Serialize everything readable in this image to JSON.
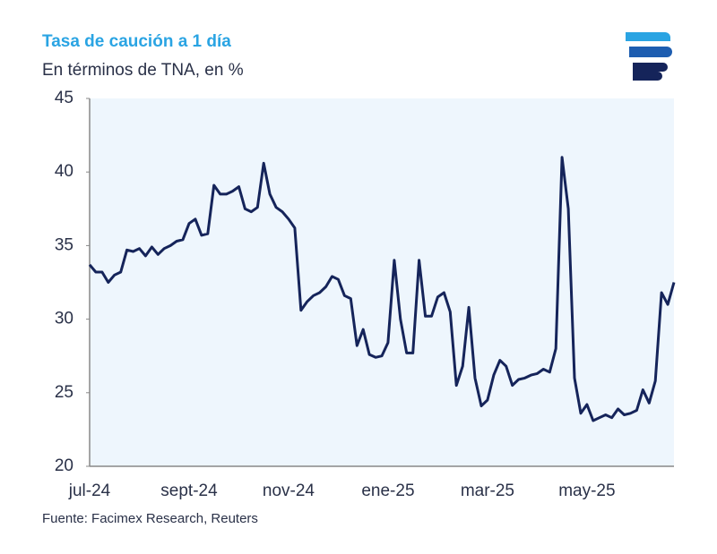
{
  "chart_data": {
    "type": "line",
    "title": "Tasa de caución a 1 día",
    "subtitle": "En términos de TNA, en %",
    "source": "Fuente: Facimex Research, Reuters",
    "categories": [
      "jul-24",
      null,
      null,
      null,
      null,
      null,
      null,
      null,
      null,
      null,
      null,
      null,
      null,
      null,
      null,
      null,
      "sept-24",
      null,
      null,
      null,
      null,
      null,
      null,
      null,
      null,
      null,
      null,
      null,
      null,
      null,
      null,
      null,
      "nov-24",
      null,
      null,
      null,
      null,
      null,
      null,
      null,
      null,
      null,
      null,
      null,
      null,
      null,
      null,
      null,
      "ene-25",
      null,
      null,
      null,
      null,
      null,
      null,
      null,
      null,
      null,
      null,
      null,
      null,
      null,
      null,
      null,
      "mar-25",
      null,
      null,
      null,
      null,
      null,
      null,
      null,
      null,
      null,
      null,
      null,
      null,
      null,
      null,
      null,
      "may-25",
      null,
      null,
      null,
      null,
      null,
      null,
      null,
      null,
      null,
      null,
      null,
      null,
      null,
      null
    ],
    "series": [
      {
        "name": "Tasa de caución a 1 día",
        "color": "#15245a",
        "values": [
          33.7,
          33.2,
          33.2,
          32.5,
          33.0,
          33.2,
          34.7,
          34.6,
          34.8,
          34.3,
          34.9,
          34.4,
          34.8,
          35.0,
          35.3,
          35.4,
          36.5,
          36.8,
          35.7,
          35.8,
          39.1,
          38.5,
          38.5,
          38.7,
          39.0,
          37.5,
          37.3,
          37.6,
          40.6,
          38.5,
          37.6,
          37.3,
          36.8,
          36.2,
          30.6,
          31.2,
          31.6,
          31.8,
          32.2,
          32.9,
          32.7,
          31.6,
          31.4,
          28.2,
          29.3,
          27.6,
          27.4,
          27.5,
          28.4,
          34.0,
          30.0,
          27.7,
          27.7,
          34.0,
          30.2,
          30.2,
          31.5,
          31.8,
          30.5,
          25.5,
          26.8,
          30.8,
          26.0,
          24.1,
          24.5,
          26.2,
          27.2,
          26.8,
          25.5,
          25.9,
          26.0,
          26.2,
          26.3,
          26.6,
          26.4,
          28.0,
          41.0,
          37.5,
          26.0,
          23.6,
          24.2,
          23.1,
          23.3,
          23.5,
          23.3,
          23.9,
          23.5,
          23.6,
          23.8,
          25.2,
          24.3,
          25.8,
          31.8,
          31.0,
          32.5
        ]
      }
    ],
    "ylim": [
      20,
      45
    ],
    "yticks": [
      20,
      25,
      30,
      35,
      40,
      45
    ],
    "grid": false
  }
}
